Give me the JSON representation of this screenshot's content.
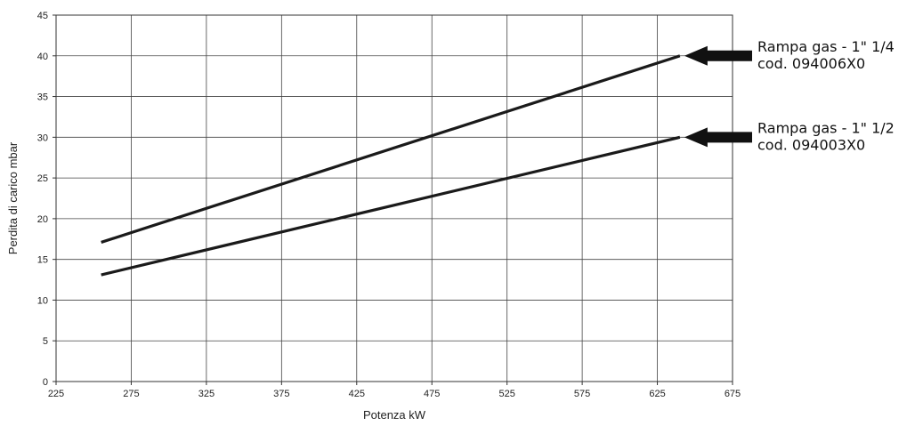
{
  "chart_data": {
    "type": "line",
    "xlabel": "Potenza kW",
    "ylabel": "Perdita di carico mbar",
    "xlim": [
      225,
      675
    ],
    "ylim": [
      0,
      45
    ],
    "xticks": [
      225,
      275,
      325,
      375,
      425,
      475,
      525,
      575,
      625,
      675
    ],
    "yticks": [
      0,
      5,
      10,
      15,
      20,
      25,
      30,
      35,
      40,
      45
    ],
    "grid": true,
    "line_color": "#1a1a1a",
    "series": [
      {
        "name": "Rampa gas - 1\" 1/4",
        "code": "cod. 094006X0",
        "x": [
          255,
          640
        ],
        "y": [
          17.1,
          40.0
        ]
      },
      {
        "name": "Rampa gas - 1\" 1/2",
        "code": "cod. 094003X0",
        "x": [
          255,
          640
        ],
        "y": [
          13.1,
          30.0
        ]
      }
    ]
  }
}
